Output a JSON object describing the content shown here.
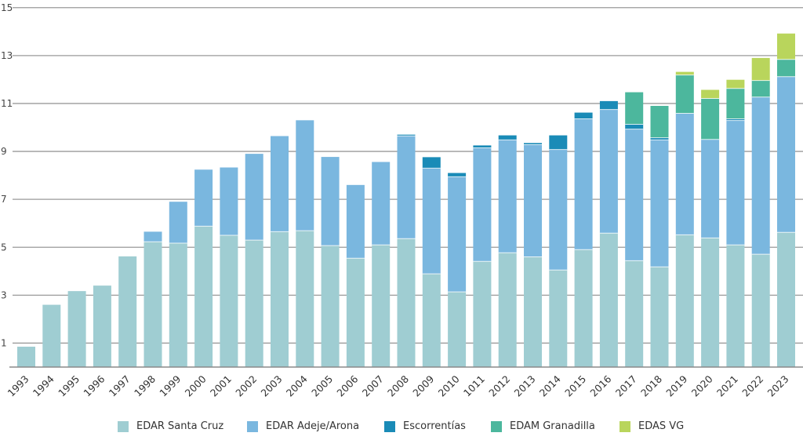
{
  "chart_data": {
    "type": "bar",
    "stacked": true,
    "title": "",
    "xlabel": "",
    "ylabel": "",
    "ylim": [
      0,
      15
    ],
    "yticks": [
      1,
      3,
      5,
      7,
      9,
      11,
      13,
      15
    ],
    "grid": true,
    "legend_position": "bottom",
    "categories": [
      "1993",
      "1994",
      "1995",
      "1996",
      "1997",
      "1998",
      "1999",
      "2000",
      "2001",
      "2002",
      "2003",
      "2004",
      "2005",
      "2006",
      "2007",
      "2008",
      "2009",
      "2010",
      "1011",
      "2012",
      "2013",
      "2014",
      "2015",
      "2016",
      "2017",
      "2018",
      "2019",
      "2020",
      "2021",
      "2022",
      "2023"
    ],
    "series": [
      {
        "name": "EDAR Santa Cruz",
        "color": "#9fcdd2",
        "values": [
          0.85,
          2.6,
          3.17,
          3.4,
          4.62,
          5.23,
          5.17,
          5.88,
          5.5,
          5.3,
          5.65,
          5.69,
          5.07,
          4.54,
          5.1,
          5.36,
          3.89,
          3.14,
          4.41,
          4.77,
          4.6,
          4.05,
          4.9,
          5.59,
          4.44,
          4.18,
          5.52,
          5.39,
          5.1,
          4.71,
          5.62
        ]
      },
      {
        "name": "EDAR Adeje/Arona",
        "color": "#7ab7df",
        "values": [
          0,
          0,
          0,
          0,
          0,
          0.42,
          1.73,
          2.36,
          2.83,
          3.6,
          3.99,
          4.61,
          3.7,
          3.06,
          3.46,
          4.29,
          4.41,
          4.8,
          4.74,
          4.71,
          4.68,
          5.03,
          5.46,
          5.16,
          5.49,
          5.3,
          5.07,
          4.11,
          5.19,
          6.56,
          6.5
        ]
      },
      {
        "name": "Escorrentías",
        "color": "#1a8bb7",
        "values": [
          0,
          0,
          0,
          0,
          0,
          0,
          0,
          0,
          0,
          0,
          0,
          0,
          0,
          0,
          0,
          0.05,
          0.46,
          0.16,
          0.1,
          0.19,
          0.07,
          0.59,
          0.26,
          0.35,
          0.2,
          0.09,
          0,
          0,
          0.07,
          0,
          0
        ]
      },
      {
        "name": "EDAM Granadilla",
        "color": "#4cb79d",
        "values": [
          0,
          0,
          0,
          0,
          0,
          0,
          0,
          0,
          0,
          0,
          0,
          0,
          0,
          0,
          0,
          0,
          0,
          0,
          0,
          0,
          0,
          0,
          0,
          0,
          1.34,
          1.33,
          1.6,
          1.71,
          1.27,
          0.69,
          0.72
        ]
      },
      {
        "name": "EDAS VG",
        "color": "#b9d55c",
        "values": [
          0,
          0,
          0,
          0,
          0,
          0,
          0,
          0,
          0,
          0,
          0,
          0,
          0,
          0,
          0,
          0,
          0,
          0,
          0,
          0,
          0,
          0,
          0,
          0,
          0,
          0,
          0.13,
          0.36,
          0.36,
          0.94,
          1.08
        ]
      }
    ]
  }
}
